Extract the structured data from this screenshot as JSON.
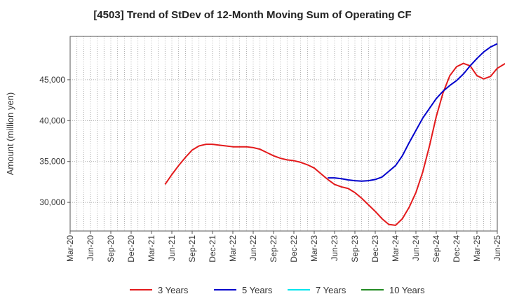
{
  "chart_data": {
    "type": "line",
    "title": "[4503]  Trend of StDev of 12-Month Moving Sum of Operating CF",
    "xlabel": "",
    "ylabel": "Amount (million yen)",
    "x_tick_labels": [
      "Mar-20",
      "Jun-20",
      "Sep-20",
      "Dec-20",
      "Mar-21",
      "Jun-21",
      "Sep-21",
      "Dec-21",
      "Mar-22",
      "Jun-22",
      "Sep-22",
      "Dec-22",
      "Mar-23",
      "Jun-23",
      "Sep-23",
      "Dec-23",
      "Mar-24",
      "Jun-24",
      "Sep-24",
      "Dec-24",
      "Mar-25",
      "Jun-25"
    ],
    "x_range": [
      "2020-03",
      "2025-06"
    ],
    "y_ticks": [
      30000,
      35000,
      40000,
      45000
    ],
    "y_tick_labels": [
      "30,000",
      "35,000",
      "40,000",
      "45,000"
    ],
    "ylim": [
      26500,
      50300
    ],
    "grid": true,
    "legend_position": "bottom",
    "series": [
      {
        "name": "3 Years",
        "color": "#e31a1c",
        "start": "2021-05",
        "values": [
          32200,
          33400,
          34500,
          35500,
          36400,
          36900,
          37100,
          37100,
          37000,
          36900,
          36800,
          36800,
          36800,
          36700,
          36500,
          36100,
          35700,
          35400,
          35200,
          35100,
          34900,
          34600,
          34200,
          33500,
          32800,
          32200,
          31900,
          31700,
          31200,
          30500,
          29700,
          28900,
          28000,
          27300,
          27200,
          28000,
          29400,
          31200,
          33700,
          36900,
          40500,
          43400,
          45500,
          46600,
          47000,
          46700,
          45500,
          45100,
          45400,
          46400,
          46900,
          47300,
          47600
        ]
      },
      {
        "name": "5 Years",
        "color": "#0000cc",
        "start": "2023-05",
        "values": [
          33000,
          33000,
          32900,
          32750,
          32650,
          32600,
          32650,
          32800,
          33100,
          33800,
          34500,
          35700,
          37300,
          38800,
          40300,
          41500,
          42700,
          43600,
          44300,
          44900,
          45700,
          46700,
          47600,
          48400,
          49000,
          49400
        ]
      },
      {
        "name": "7 Years",
        "color": "#00e5ee",
        "values": []
      },
      {
        "name": "10 Years",
        "color": "#228b22",
        "values": []
      }
    ]
  }
}
